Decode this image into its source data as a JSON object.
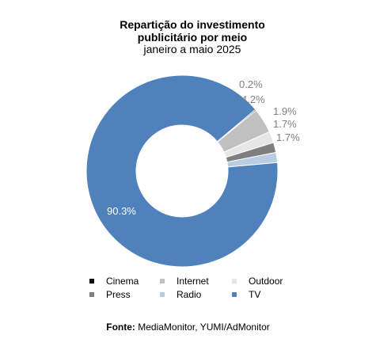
{
  "chart_data": {
    "type": "pie",
    "style": "donut",
    "title_line1": "Repartição do investimento",
    "title_line2": "publicitário por meio",
    "subtitle": "janeiro a maio 2025",
    "categories": [
      "Cinema",
      "Internet",
      "Outdoor",
      "Press",
      "Radio",
      "TV"
    ],
    "values": [
      0.2,
      4.2,
      1.9,
      1.7,
      1.7,
      90.3
    ],
    "labels": [
      "0.2%",
      "4.2%",
      "1.9%",
      "1.7%",
      "1.7%",
      "90.3%"
    ],
    "colors": [
      "#000000",
      "#c0c0c0",
      "#e6e6e6",
      "#7f7f7f",
      "#b8cce4",
      "#4f81bd"
    ],
    "legend_position": "bottom"
  },
  "source": {
    "label": "Fonte:",
    "text": "MediaMonitor, YUMI/AdMonitor"
  }
}
